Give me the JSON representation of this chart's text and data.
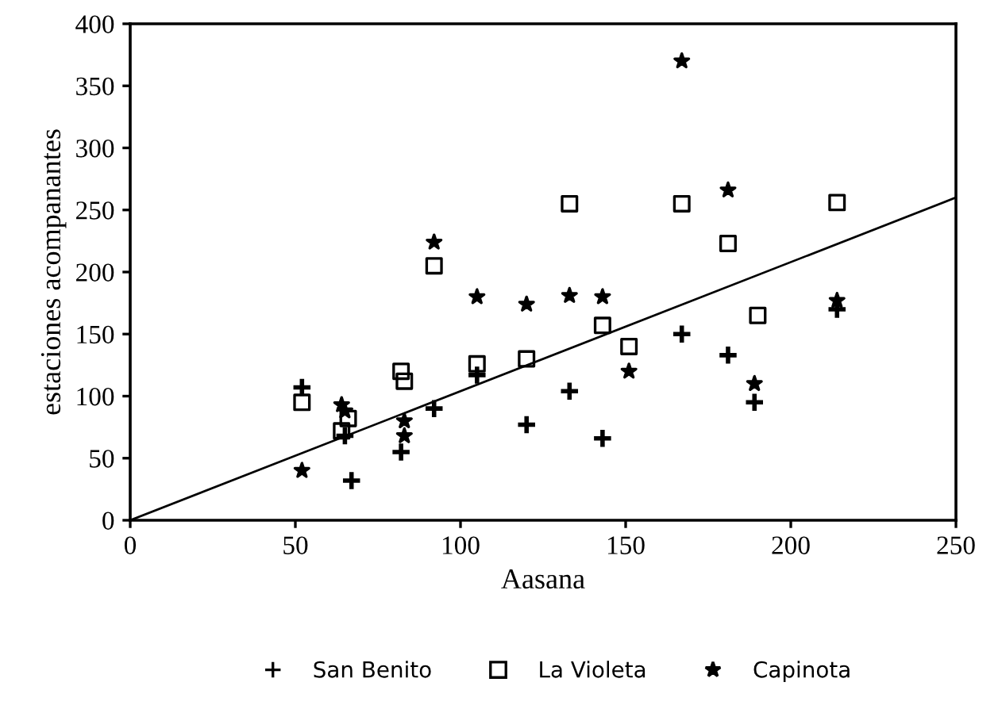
{
  "chart_data": {
    "type": "scatter",
    "xlabel": "Aasana",
    "ylabel": "estaciones acompanantes",
    "xlim": [
      0,
      250
    ],
    "ylim": [
      0,
      400
    ],
    "xticks": [
      0,
      50,
      100,
      150,
      200,
      250
    ],
    "yticks": [
      0,
      50,
      100,
      150,
      200,
      250,
      300,
      350,
      400
    ],
    "grid": false,
    "legend": "bottom",
    "series": [
      {
        "name": "San Benito",
        "color": "#000000",
        "marker": "cross",
        "x": [
          52,
          65,
          67,
          82,
          92,
          105,
          120,
          133,
          143,
          167,
          181,
          189,
          214
        ],
        "values": [
          107,
          68,
          32,
          55,
          90,
          117,
          77,
          104,
          66,
          150,
          133,
          95,
          170
        ]
      },
      {
        "name": "La Violeta",
        "color": "#000000",
        "marker": "square",
        "x": [
          52,
          64,
          66,
          82,
          83,
          92,
          105,
          120,
          133,
          143,
          151,
          167,
          181,
          190,
          214
        ],
        "values": [
          95,
          72,
          82,
          120,
          112,
          205,
          126,
          130,
          255,
          157,
          140,
          255,
          223,
          165,
          256
        ]
      },
      {
        "name": "Capinota",
        "color": "#000000",
        "marker": "star",
        "x": [
          52,
          64,
          65,
          83,
          83,
          92,
          105,
          120,
          133,
          143,
          151,
          167,
          181,
          189,
          214
        ],
        "values": [
          40,
          93,
          88,
          80,
          68,
          224,
          180,
          174,
          181,
          180,
          120,
          370,
          266,
          110,
          177
        ]
      },
      {
        "type": "line",
        "color": "#000000",
        "marker": "none",
        "line_style": "solid",
        "x": [
          0,
          250
        ],
        "values": [
          0,
          260
        ]
      }
    ]
  }
}
